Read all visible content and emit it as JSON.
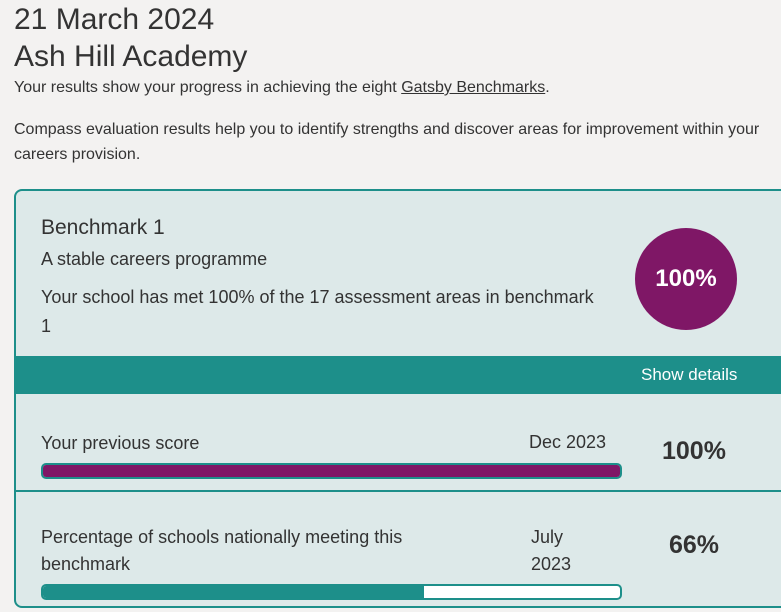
{
  "header": {
    "date": "21 March 2024",
    "school_name": "Ash Hill Academy",
    "intro_prefix": "Your results show your progress in achieving the eight ",
    "intro_link": "Gatsby Benchmarks",
    "intro_suffix": ".",
    "compass_text": "Compass evaluation results help you to identify strengths and discover areas for improvement within your careers provision."
  },
  "benchmark": {
    "title": "Benchmark 1",
    "subtitle": "A stable careers programme",
    "description": "Your school has met 100% of the 17 assessment areas in benchmark 1",
    "score": "100%",
    "show_details_label": "Show details"
  },
  "previous": {
    "label": "Your previous score",
    "date": "Dec 2023",
    "percent": "100%",
    "fill_fraction": 1.0
  },
  "national": {
    "label": "Percentage of schools nationally meeting this benchmark",
    "date": "July 2023",
    "percent": "66%",
    "fill_fraction": 0.66
  },
  "colors": {
    "teal": "#1d8f8a",
    "plum": "#7f1766",
    "card_bg": "#dde9e9",
    "page_bg": "#f3f2f1"
  }
}
